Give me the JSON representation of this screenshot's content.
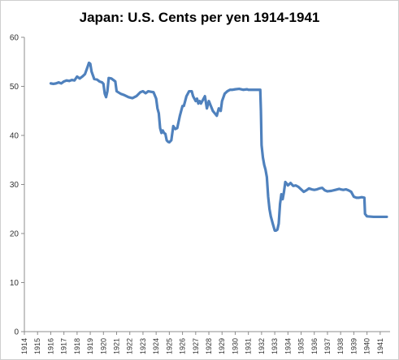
{
  "chart_data": {
    "type": "line",
    "title": "Japan: U.S. Cents per yen 1914-1941",
    "xlabel": "",
    "ylabel": "",
    "xlim": [
      1914,
      1941.75
    ],
    "ylim": [
      0,
      60
    ],
    "y_ticks": [
      "0",
      "10",
      "20",
      "30",
      "40",
      "50",
      "60"
    ],
    "x_ticks": [
      "1914",
      "1915",
      "1916",
      "1917",
      "1918",
      "1919",
      "1920",
      "1921",
      "1922",
      "1923",
      "1924",
      "1925",
      "1926",
      "1927",
      "1928",
      "1929",
      "1930",
      "1931",
      "1932",
      "1933",
      "1934",
      "1935",
      "1936",
      "1937",
      "1938",
      "1939",
      "1940",
      "1941"
    ],
    "grid": false,
    "legend": "none",
    "line_color": "#4f81bd",
    "series": [
      {
        "x": [
          1916.0,
          1916.2,
          1916.4,
          1916.6,
          1916.8,
          1917.0,
          1917.2,
          1917.4,
          1917.6,
          1917.8,
          1918.0,
          1918.2,
          1918.4,
          1918.6,
          1918.8,
          1918.9,
          1919.0,
          1919.1,
          1919.3,
          1919.5,
          1919.7,
          1919.9,
          1920.0,
          1920.1,
          1920.2,
          1920.3,
          1920.4,
          1920.6,
          1920.9,
          1921.0,
          1921.3,
          1921.6,
          1921.9,
          1922.2,
          1922.5,
          1922.8,
          1923.0,
          1923.2,
          1923.4,
          1923.6,
          1923.8,
          1924.0,
          1924.1,
          1924.2,
          1924.3,
          1924.4,
          1924.5,
          1924.6,
          1924.7,
          1924.8,
          1924.9,
          1925.0,
          1925.15,
          1925.3,
          1925.45,
          1925.6,
          1925.8,
          1925.9,
          1926.0,
          1926.1,
          1926.2,
          1926.3,
          1926.4,
          1926.5,
          1926.7,
          1926.8,
          1927.0,
          1927.1,
          1927.2,
          1927.3,
          1927.4,
          1927.5,
          1927.7,
          1927.85,
          1928.0,
          1928.15,
          1928.3,
          1928.45,
          1928.6,
          1928.75,
          1928.9,
          1929.0,
          1929.2,
          1929.4,
          1929.6,
          1929.8,
          1930.0,
          1930.3,
          1930.6,
          1930.9,
          1931.0,
          1931.3,
          1931.6,
          1931.9,
          1931.95,
          1932.0,
          1932.1,
          1932.2,
          1932.3,
          1932.4,
          1932.5,
          1932.6,
          1932.7,
          1932.85,
          1933.0,
          1933.1,
          1933.2,
          1933.3,
          1933.4,
          1933.5,
          1933.6,
          1933.7,
          1933.8,
          1933.9,
          1934.0,
          1934.2,
          1934.4,
          1934.6,
          1934.8,
          1935.0,
          1935.2,
          1935.4,
          1935.6,
          1935.8,
          1936.0,
          1936.2,
          1936.4,
          1936.6,
          1936.8,
          1937.0,
          1937.3,
          1937.6,
          1937.9,
          1938.0,
          1938.2,
          1938.4,
          1938.6,
          1938.8,
          1939.0,
          1939.2,
          1939.4,
          1939.6,
          1939.8,
          1939.85,
          1940.0,
          1940.5,
          1941.0,
          1941.5
        ],
        "y": [
          50.6,
          50.5,
          50.6,
          50.8,
          50.6,
          51.0,
          51.2,
          51.1,
          51.3,
          51.2,
          52.0,
          51.6,
          52.0,
          52.5,
          54.0,
          54.8,
          54.6,
          53.0,
          51.5,
          51.4,
          51.0,
          50.8,
          50.5,
          48.5,
          47.8,
          49.0,
          51.7,
          51.6,
          51.0,
          49.0,
          48.5,
          48.2,
          47.8,
          47.6,
          48.0,
          48.8,
          49.0,
          48.6,
          49.0,
          48.9,
          48.8,
          47.5,
          45.5,
          44.5,
          41.5,
          40.5,
          41.0,
          40.5,
          40.3,
          39.0,
          38.7,
          38.6,
          39.0,
          41.9,
          41.3,
          41.5,
          44.0,
          45.0,
          46.0,
          46.0,
          47.0,
          48.0,
          48.5,
          49.0,
          49.0,
          48.0,
          47.0,
          47.5,
          46.5,
          47.0,
          46.5,
          47.0,
          48.0,
          45.5,
          47.0,
          46.0,
          45.0,
          44.5,
          44.0,
          45.5,
          45.0,
          47.0,
          48.5,
          49.0,
          49.3,
          49.3,
          49.4,
          49.5,
          49.3,
          49.4,
          49.3,
          49.3,
          49.3,
          49.3,
          45.0,
          38.0,
          35.5,
          34.0,
          33.0,
          31.5,
          27.5,
          25.0,
          23.5,
          22.0,
          20.6,
          20.6,
          20.8,
          22.0,
          26.0,
          28.0,
          27.0,
          28.5,
          30.5,
          30.2,
          29.8,
          30.3,
          29.7,
          29.8,
          29.5,
          29.0,
          28.5,
          28.8,
          29.2,
          29.0,
          28.9,
          29.0,
          29.2,
          29.3,
          28.8,
          28.6,
          28.7,
          28.9,
          29.1,
          29.0,
          28.9,
          29.0,
          28.8,
          28.5,
          27.5,
          27.3,
          27.3,
          27.4,
          27.3,
          24.0,
          23.5,
          23.4,
          23.4,
          23.4
        ]
      }
    ]
  }
}
